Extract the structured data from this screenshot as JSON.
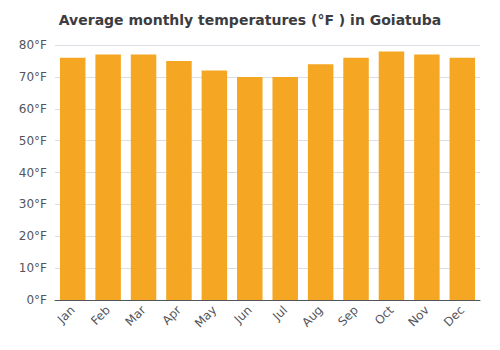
{
  "chart_data": {
    "type": "bar",
    "title": "Average monthly temperatures (°F ) in Goiatuba",
    "categories": [
      "Jan",
      "Feb",
      "Mar",
      "Apr",
      "May",
      "Jun",
      "Jul",
      "Aug",
      "Sep",
      "Oct",
      "Nov",
      "Dec"
    ],
    "values": [
      76,
      77,
      77,
      75,
      72,
      70,
      70,
      74,
      76,
      78,
      77,
      76
    ],
    "color": "#F5A623",
    "ylim": [
      0,
      80
    ],
    "yticks": [
      {
        "value": 0,
        "label": "0°F"
      },
      {
        "value": 10,
        "label": "10°F"
      },
      {
        "value": 20,
        "label": "20°F"
      },
      {
        "value": 30,
        "label": "30°F"
      },
      {
        "value": 40,
        "label": "40°F"
      },
      {
        "value": 50,
        "label": "50°F"
      },
      {
        "value": 60,
        "label": "60°F"
      },
      {
        "value": 70,
        "label": "70°F"
      },
      {
        "value": 80,
        "label": "80°F"
      }
    ],
    "grid": true
  }
}
